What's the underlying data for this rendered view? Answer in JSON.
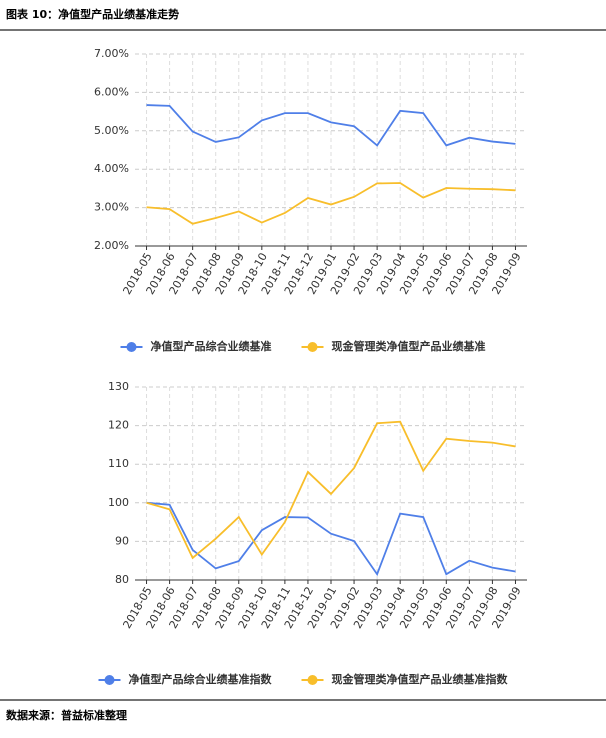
{
  "header": {
    "title": "图表 10：净值型产品业绩基准走势"
  },
  "footer": {
    "source": "数据来源：普益标准整理"
  },
  "chart_data": [
    {
      "type": "line",
      "categories": [
        "2018-05",
        "2018-06",
        "2018-07",
        "2018-08",
        "2018-09",
        "2018-10",
        "2018-11",
        "2018-12",
        "2019-01",
        "2019-02",
        "2019-03",
        "2019-04",
        "2019-05",
        "2019-06",
        "2019-07",
        "2019-08",
        "2019-09"
      ],
      "series": [
        {
          "name": "净值型产品综合业绩基准",
          "color": "#4f7fe8",
          "values": [
            5.67,
            5.65,
            4.98,
            4.71,
            4.83,
            5.27,
            5.46,
            5.46,
            5.22,
            5.12,
            4.62,
            5.52,
            5.46,
            4.62,
            4.82,
            4.72,
            4.66
          ]
        },
        {
          "name": "现金管理类净值型产品业绩基准",
          "color": "#f8be2b",
          "values": [
            3.01,
            2.96,
            2.58,
            2.73,
            2.9,
            2.61,
            2.86,
            3.25,
            3.08,
            3.28,
            3.63,
            3.64,
            3.26,
            3.51,
            3.49,
            3.48,
            3.45
          ]
        }
      ],
      "ylim": [
        2,
        7
      ],
      "yticks": [
        {
          "value": 2,
          "label": "2.00%"
        },
        {
          "value": 3,
          "label": "3.00%"
        },
        {
          "value": 4,
          "label": "4.00%"
        },
        {
          "value": 5,
          "label": "5.00%"
        },
        {
          "value": 6,
          "label": "6.00%"
        },
        {
          "value": 7,
          "label": "7.00%"
        }
      ],
      "grid": true,
      "legend": "bottom"
    },
    {
      "type": "line",
      "categories": [
        "2018-05",
        "2018-06",
        "2018-07",
        "2018-08",
        "2018-09",
        "2018-10",
        "2018-11",
        "2018-12",
        "2019-01",
        "2019-02",
        "2019-03",
        "2019-04",
        "2019-05",
        "2019-06",
        "2019-07",
        "2019-08",
        "2019-09"
      ],
      "series": [
        {
          "name": "净值型产品综合业绩基准指数",
          "color": "#4f7fe8",
          "values": [
            100,
            99.5,
            87.8,
            83.0,
            84.9,
            92.9,
            96.3,
            96.2,
            92.0,
            90.1,
            81.5,
            97.2,
            96.3,
            81.5,
            85.0,
            83.2,
            82.2
          ]
        },
        {
          "name": "现金管理类净值型产品业绩基准指数",
          "color": "#f8be2b",
          "values": [
            100,
            98.3,
            85.7,
            90.7,
            96.3,
            86.6,
            95.0,
            108.0,
            102.3,
            109.0,
            120.6,
            121.0,
            108.3,
            116.6,
            116.0,
            115.6,
            114.6
          ]
        }
      ],
      "ylim": [
        80,
        130
      ],
      "yticks": [
        80,
        90,
        100,
        110,
        120,
        130
      ],
      "grid": true,
      "legend": "bottom"
    }
  ]
}
